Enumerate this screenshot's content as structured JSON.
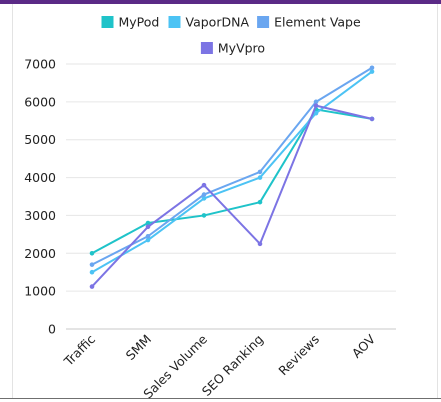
{
  "chart_data": {
    "type": "line",
    "categories": [
      "Traffic",
      "SMM",
      "Sales Volume",
      "SEO Ranking",
      "Reviews",
      "AOV"
    ],
    "ylim": [
      0,
      7000
    ],
    "yticks": [
      0,
      1000,
      2000,
      3000,
      4000,
      5000,
      6000,
      7000
    ],
    "grid": true,
    "legend_position": "top",
    "series": [
      {
        "name": "MyPod",
        "color": "#1fc3c9",
        "values": [
          2000,
          2800,
          3000,
          3350,
          5800,
          5550
        ]
      },
      {
        "name": "VaporDNA",
        "color": "#4cc3f4",
        "values": [
          1500,
          2350,
          3450,
          4000,
          5700,
          6800
        ]
      },
      {
        "name": "Element Vape",
        "color": "#6aa6f0",
        "values": [
          1700,
          2450,
          3550,
          4150,
          6000,
          6900
        ]
      },
      {
        "name": "MyVpro",
        "color": "#7c74e4",
        "values": [
          1120,
          2700,
          3800,
          2250,
          5900,
          5550
        ]
      }
    ]
  }
}
